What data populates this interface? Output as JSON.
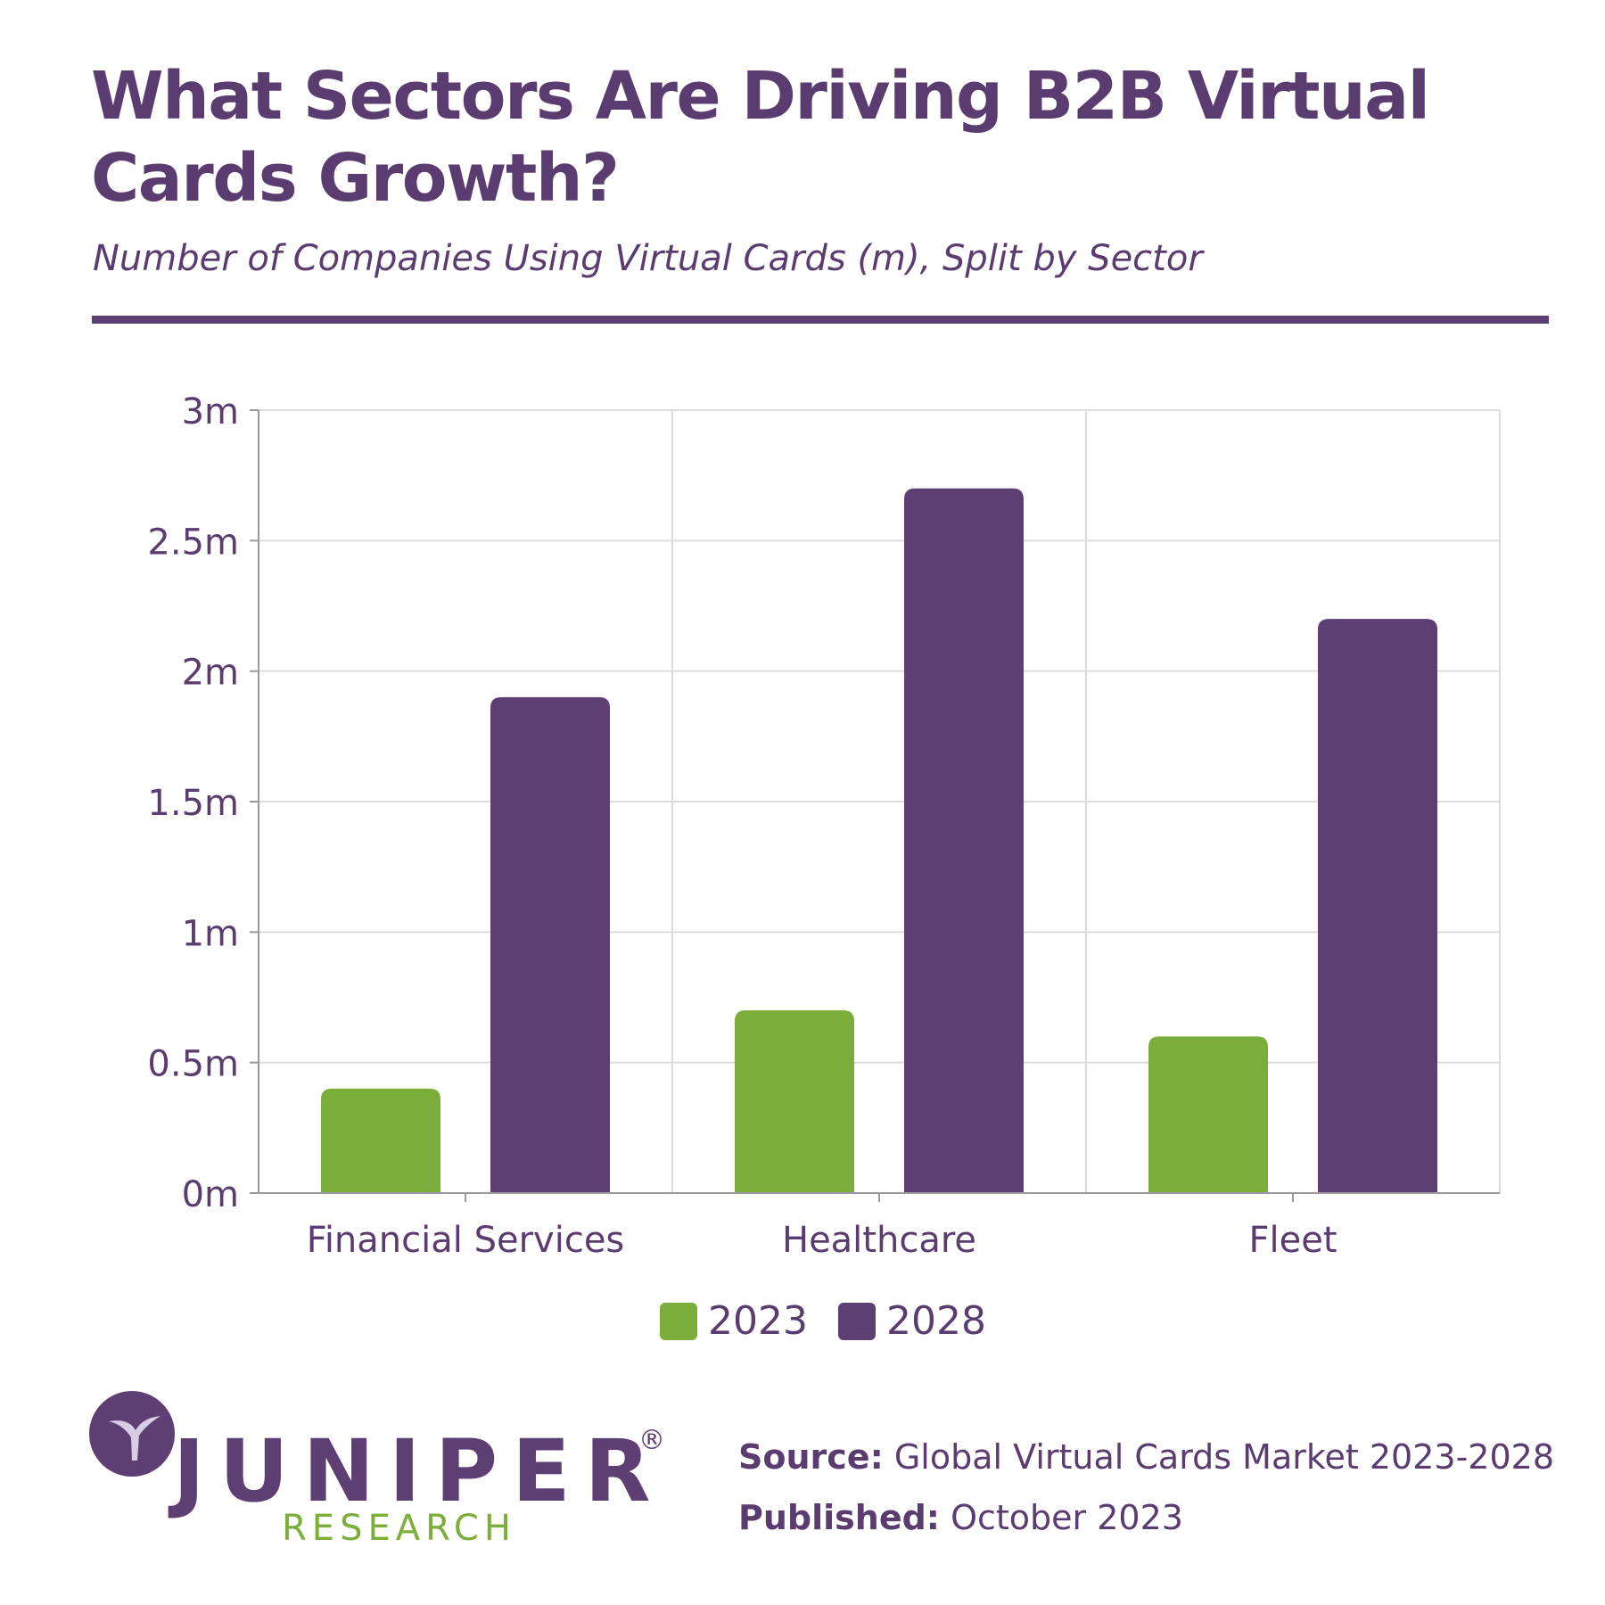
{
  "header": {
    "title": "What Sectors Are Driving B2B Virtual Cards Growth?",
    "subtitle": "Number of Companies Using Virtual Cards (m), Split by Sector"
  },
  "colors": {
    "accent": "#5e3f74",
    "series_2023": "#7cad3a",
    "series_2028": "#5e3f74"
  },
  "chart_data": {
    "type": "bar",
    "title": "What Sectors Are Driving B2B Virtual Cards Growth?",
    "subtitle": "Number of Companies Using Virtual Cards (m), Split by Sector",
    "categories": [
      "Financial Services",
      "Healthcare",
      "Fleet"
    ],
    "series": [
      {
        "name": "2023",
        "values": [
          0.4,
          0.7,
          0.6
        ],
        "color": "#7cad3a"
      },
      {
        "name": "2028",
        "values": [
          1.9,
          2.7,
          2.2
        ],
        "color": "#5e3f74"
      }
    ],
    "ylim": [
      0,
      3
    ],
    "yticks": [
      0,
      0.5,
      1,
      1.5,
      2,
      2.5,
      3
    ],
    "ytick_labels": [
      "0m",
      "0.5m",
      "1m",
      "1.5m",
      "2m",
      "2.5m",
      "3m"
    ],
    "grid": true,
    "legend": "bottom-center"
  },
  "legend": {
    "items": [
      "2023",
      "2028"
    ]
  },
  "logo": {
    "name": "JUNIPER",
    "registered": "®",
    "sub": "RESEARCH"
  },
  "footer": {
    "source_label": "Source:",
    "source_value": "Global Virtual Cards Market 2023-2028",
    "published_label": "Published:",
    "published_value": "October 2023"
  }
}
